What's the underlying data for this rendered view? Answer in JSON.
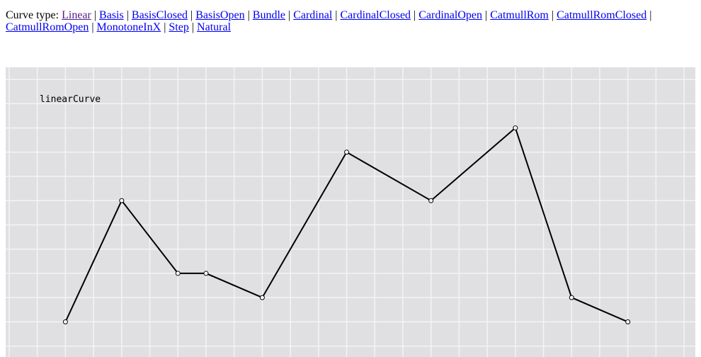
{
  "nav": {
    "prefix": "Curve type: ",
    "links": [
      {
        "label": "Linear",
        "visited": true
      },
      {
        "label": "Basis"
      },
      {
        "label": "BasisClosed"
      },
      {
        "label": "BasisOpen"
      },
      {
        "label": "Bundle"
      },
      {
        "label": "Cardinal"
      },
      {
        "label": "CardinalClosed"
      },
      {
        "label": "CardinalOpen"
      },
      {
        "label": "CatmullRom"
      },
      {
        "label": "CatmullRomClosed"
      },
      {
        "label": "CatmullRomOpen"
      },
      {
        "label": "MonotoneInX"
      },
      {
        "label": "Step"
      },
      {
        "label": "Natural"
      }
    ],
    "separator": " | "
  },
  "chart_data": {
    "type": "line",
    "annotation": "linearCurve",
    "x": [
      1,
      2,
      3,
      3.5,
      4.5,
      6,
      7.5,
      9,
      10,
      11
    ],
    "y": [
      0,
      5,
      2,
      2,
      1,
      7,
      5,
      8,
      1,
      0
    ],
    "xlim": [
      -0.0625,
      12.2
    ],
    "ylim": [
      -1.45,
      10.5
    ],
    "grid": true,
    "markers": "open-circle",
    "colors": {
      "line": "#000000",
      "background": "#e0e0e2",
      "grid": "#f4f4f5"
    }
  }
}
